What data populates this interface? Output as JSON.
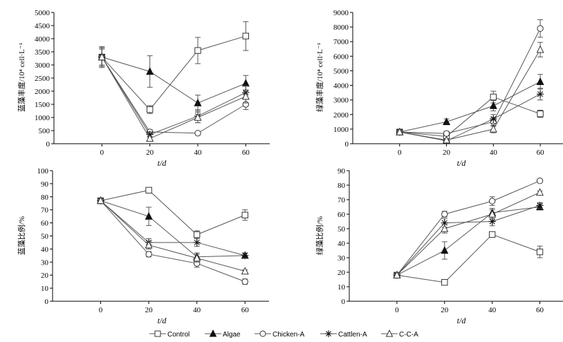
{
  "legend": [
    {
      "label": "Control",
      "marker": "square"
    },
    {
      "label": "Algae",
      "marker": "filled-triangle"
    },
    {
      "label": "Chicken-A",
      "marker": "circle"
    },
    {
      "label": "Cattlen-A",
      "marker": "star"
    },
    {
      "label": "C-C-A",
      "marker": "open-triangle"
    }
  ],
  "chart_data": [
    {
      "type": "line",
      "xlabel": "t/d",
      "ylabel": "蓝藻丰度/10⁴ cell·L⁻¹",
      "x": [
        0,
        20,
        40,
        60
      ],
      "xlim": [
        -20,
        70
      ],
      "ylim": [
        0,
        5000
      ],
      "yticks": [
        0,
        500,
        1000,
        1500,
        2000,
        2500,
        3000,
        3500,
        4000,
        4500,
        5000
      ],
      "series": [
        {
          "name": "Control",
          "values": [
            3300,
            1300,
            3550,
            4100
          ],
          "errors": [
            400,
            150,
            500,
            550
          ]
        },
        {
          "name": "Algae",
          "values": [
            3300,
            2750,
            1550,
            2300
          ],
          "errors": [
            350,
            600,
            300,
            300
          ]
        },
        {
          "name": "Chicken-A",
          "values": [
            3300,
            450,
            400,
            1500
          ],
          "errors": [
            300,
            80,
            50,
            200
          ]
        },
        {
          "name": "Cattlen-A",
          "values": [
            3300,
            350,
            1050,
            1950
          ],
          "errors": [
            350,
            100,
            250,
            250
          ]
        },
        {
          "name": "C-C-A",
          "values": [
            3300,
            200,
            1000,
            1800
          ],
          "errors": [
            350,
            60,
            200,
            250
          ]
        }
      ]
    },
    {
      "type": "line",
      "xlabel": "t/d",
      "ylabel": "绿藻丰度/10⁴ cell·L⁻¹",
      "x": [
        0,
        20,
        40,
        60
      ],
      "xlim": [
        -20,
        70
      ],
      "ylim": [
        0,
        9000
      ],
      "yticks": [
        0,
        1000,
        2000,
        3000,
        4000,
        5000,
        6000,
        7000,
        8000,
        9000
      ],
      "series": [
        {
          "name": "Control",
          "values": [
            800,
            500,
            3200,
            2050
          ],
          "errors": [
            100,
            100,
            400,
            250
          ]
        },
        {
          "name": "Algae",
          "values": [
            800,
            1500,
            2600,
            4250
          ],
          "errors": [
            100,
            200,
            350,
            500
          ]
        },
        {
          "name": "Chicken-A",
          "values": [
            800,
            700,
            1500,
            7900
          ],
          "errors": [
            100,
            150,
            300,
            600
          ]
        },
        {
          "name": "Cattlen-A",
          "values": [
            800,
            200,
            1700,
            3400
          ],
          "errors": [
            100,
            80,
            300,
            400
          ]
        },
        {
          "name": "C-C-A",
          "values": [
            800,
            250,
            1000,
            6450
          ],
          "errors": [
            100,
            80,
            250,
            500
          ]
        }
      ]
    },
    {
      "type": "line",
      "xlabel": "t/d",
      "ylabel": "蓝藻比例/%",
      "x": [
        0,
        20,
        40,
        60
      ],
      "xlim": [
        -20,
        70
      ],
      "ylim": [
        0,
        100
      ],
      "yticks": [
        0,
        10,
        20,
        30,
        40,
        50,
        60,
        70,
        80,
        90,
        100
      ],
      "series": [
        {
          "name": "Control",
          "values": [
            77,
            85,
            51,
            66
          ],
          "errors": [
            2,
            1,
            3,
            4
          ]
        },
        {
          "name": "Algae",
          "values": [
            77,
            65,
            34,
            35
          ],
          "errors": [
            2,
            7,
            3,
            2
          ]
        },
        {
          "name": "Chicken-A",
          "values": [
            77,
            36,
            29,
            15
          ],
          "errors": [
            2,
            2,
            3,
            2
          ]
        },
        {
          "name": "Cattlen-A",
          "values": [
            77,
            45,
            45,
            35
          ],
          "errors": [
            2,
            3,
            3,
            2
          ]
        },
        {
          "name": "C-C-A",
          "values": [
            77,
            43,
            33,
            23
          ],
          "errors": [
            2,
            3,
            3,
            1
          ]
        }
      ]
    },
    {
      "type": "line",
      "xlabel": "t/d",
      "ylabel": "绿藻比例/%",
      "x": [
        0,
        20,
        40,
        60
      ],
      "xlim": [
        -20,
        70
      ],
      "ylim": [
        0,
        90
      ],
      "yticks": [
        0,
        10,
        20,
        30,
        40,
        50,
        60,
        70,
        80,
        90
      ],
      "series": [
        {
          "name": "Control",
          "values": [
            18,
            13,
            46,
            34
          ],
          "errors": [
            2,
            1,
            1,
            4
          ]
        },
        {
          "name": "Algae",
          "values": [
            18,
            35,
            61,
            65
          ],
          "errors": [
            2,
            6,
            3,
            2
          ]
        },
        {
          "name": "Chicken-A",
          "values": [
            18,
            60,
            69,
            83
          ],
          "errors": [
            2,
            2,
            3,
            1
          ]
        },
        {
          "name": "Cattlen-A",
          "values": [
            18,
            54,
            55,
            66
          ],
          "errors": [
            2,
            3,
            3,
            2
          ]
        },
        {
          "name": "C-C-A",
          "values": [
            18,
            50,
            60,
            75
          ],
          "errors": [
            2,
            3,
            3,
            1
          ]
        }
      ]
    }
  ]
}
